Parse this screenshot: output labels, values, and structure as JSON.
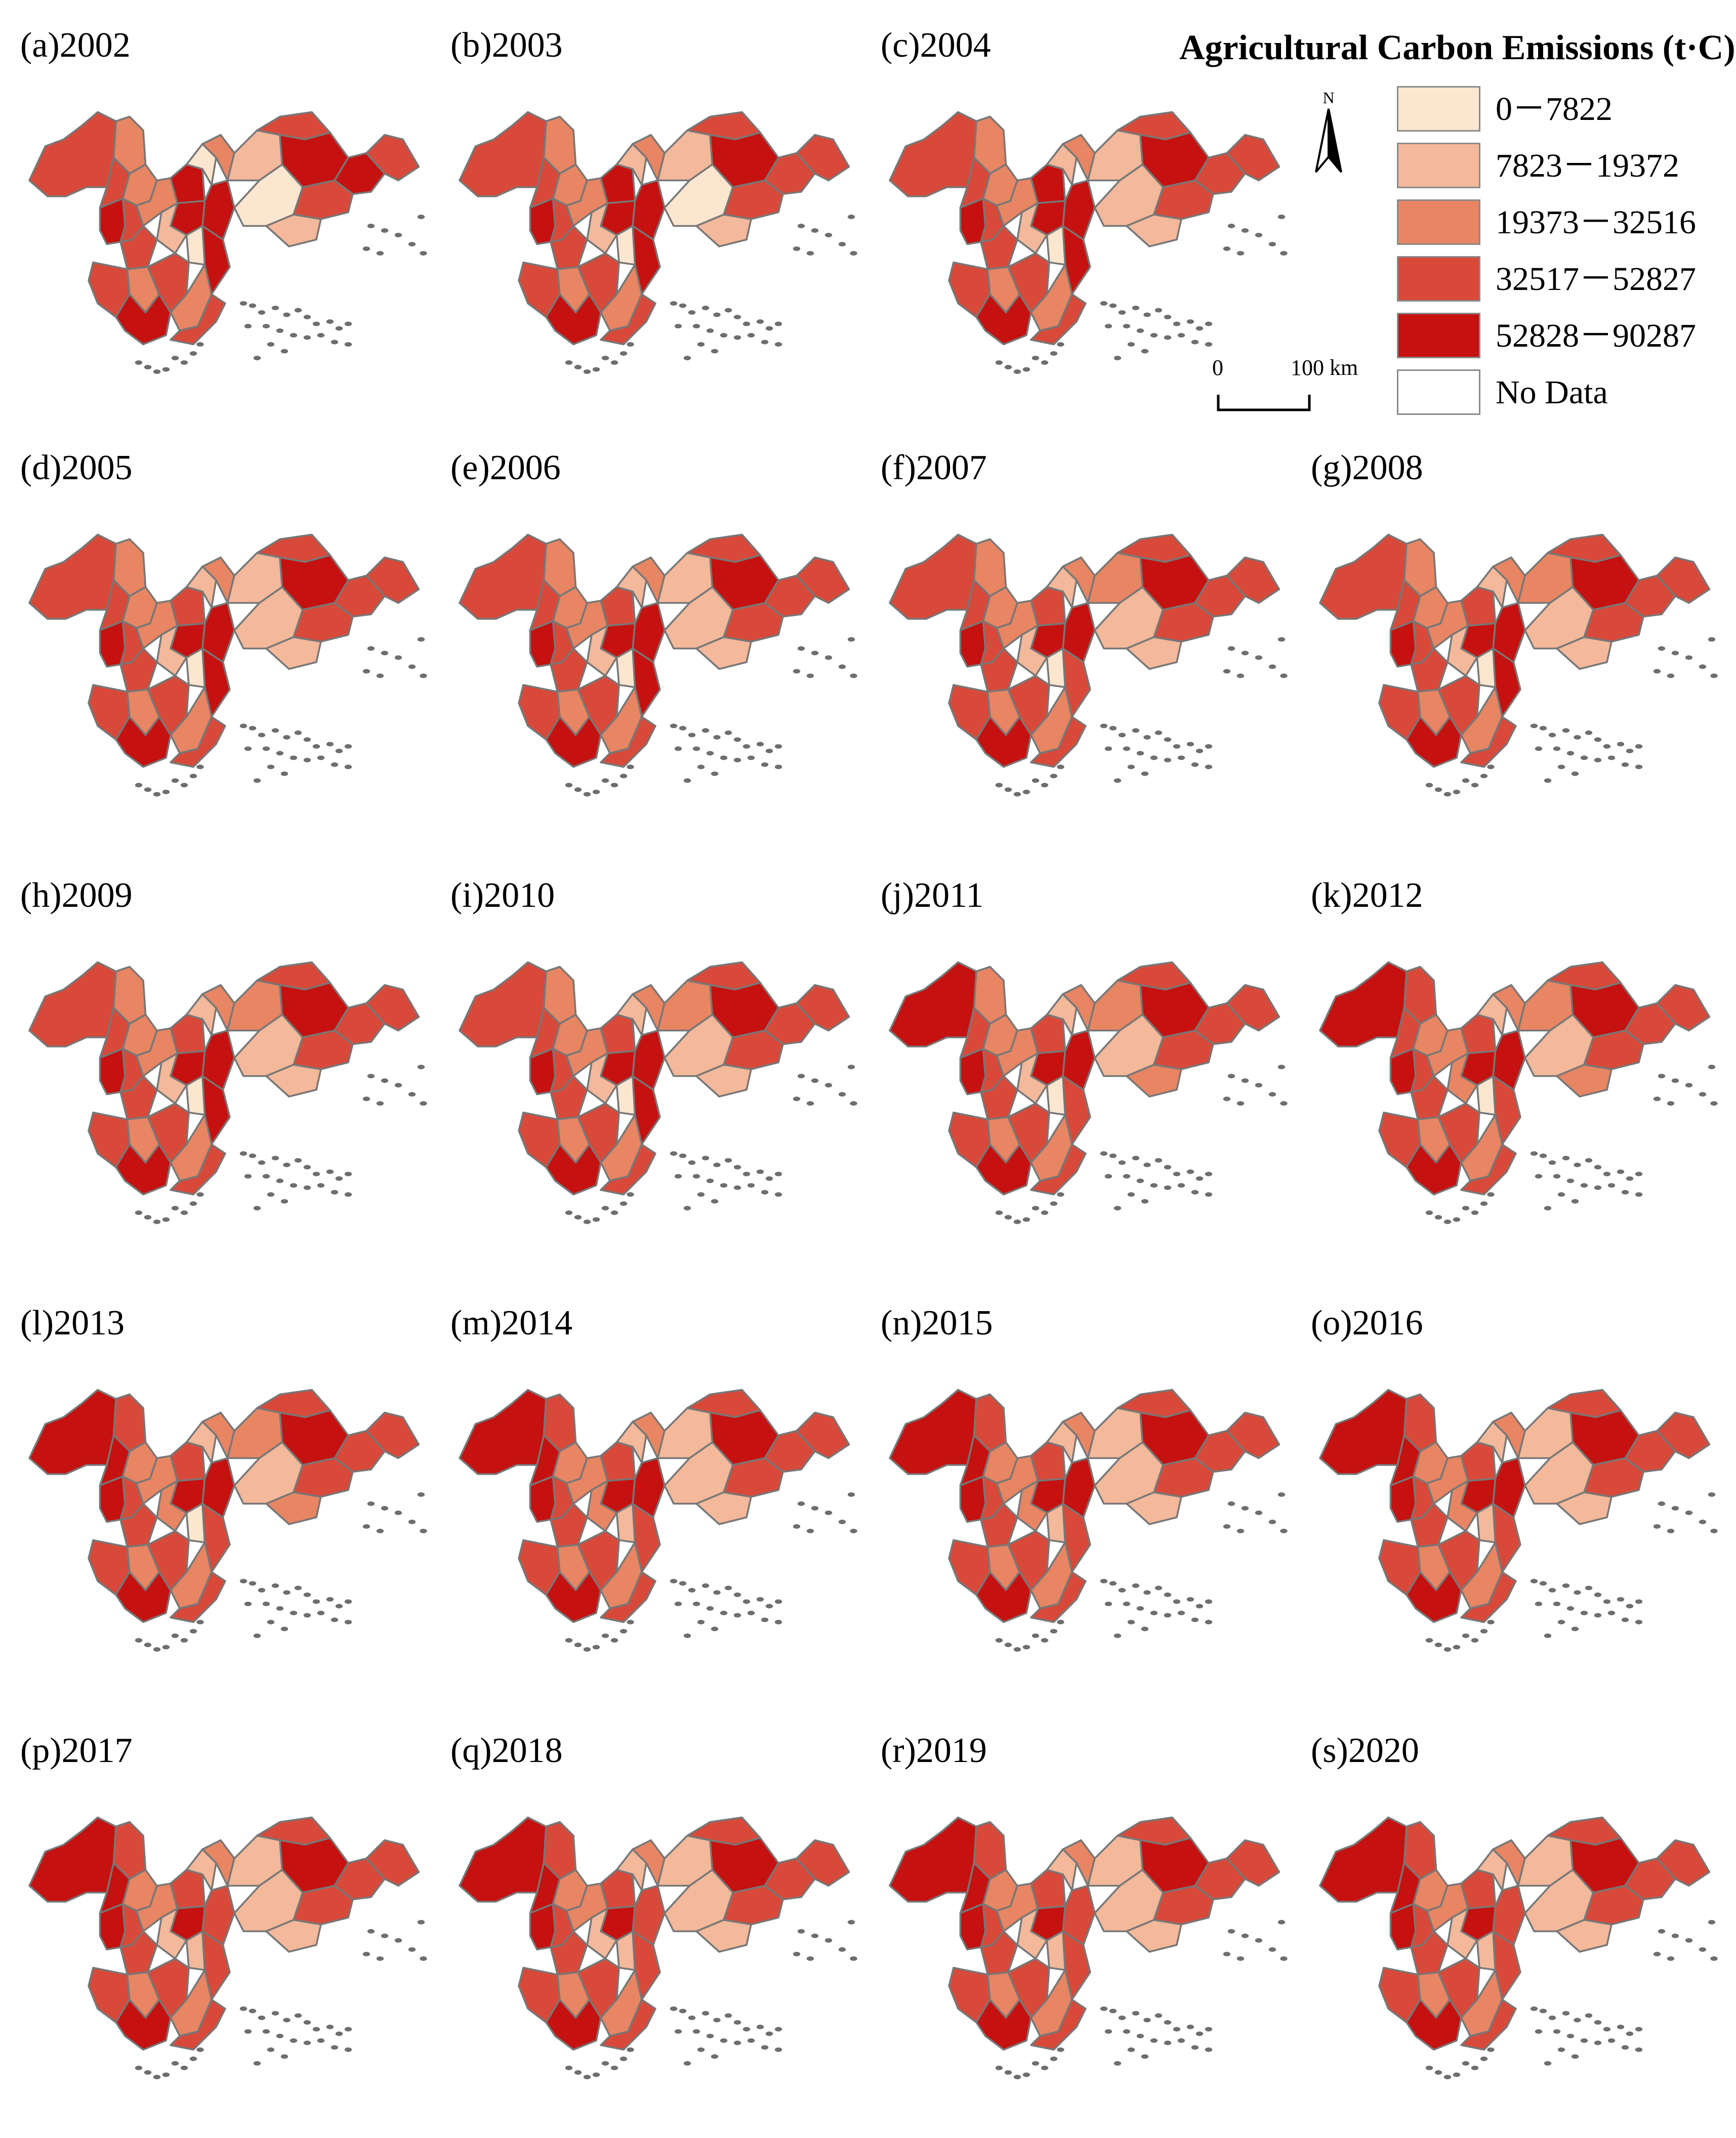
{
  "legend": {
    "title": "Agricultural Carbon Emissions (t·C)",
    "classes": [
      {
        "label": "0－7822",
        "color": "#fde6cf"
      },
      {
        "label": "7823－19372",
        "color": "#f4b89a"
      },
      {
        "label": "19373－32516",
        "color": "#e88563"
      },
      {
        "label": "32517－52827",
        "color": "#d8493a"
      },
      {
        "label": "52828－90287",
        "color": "#c5110f"
      },
      {
        "label": "No Data",
        "color": "#ffffff"
      }
    ],
    "north_label": "N",
    "scale": {
      "start": "0",
      "end": "100 km"
    }
  },
  "panels": [
    {
      "label": "(a)2002",
      "classes": [
        3,
        2,
        3,
        2,
        4,
        3,
        2,
        4,
        0,
        2,
        1,
        3,
        4,
        4,
        3,
        4,
        0,
        3,
        4,
        1,
        3,
        0,
        1,
        4,
        3,
        2,
        3,
        4,
        2,
        3
      ]
    },
    {
      "label": "(b)2003",
      "classes": [
        3,
        2,
        3,
        2,
        4,
        3,
        2,
        4,
        1,
        2,
        1,
        3,
        4,
        3,
        3,
        4,
        0,
        3,
        4,
        1,
        3,
        0,
        1,
        4,
        3,
        2,
        3,
        4,
        2,
        3
      ]
    },
    {
      "label": "(c)2004",
      "classes": [
        3,
        2,
        3,
        2,
        4,
        3,
        2,
        4,
        1,
        2,
        1,
        3,
        4,
        3,
        3,
        4,
        1,
        3,
        4,
        1,
        3,
        0,
        1,
        4,
        3,
        2,
        3,
        4,
        2,
        3
      ]
    },
    {
      "label": "(d)2005",
      "classes": [
        3,
        2,
        3,
        2,
        4,
        3,
        2,
        3,
        1,
        2,
        1,
        3,
        4,
        3,
        3,
        4,
        1,
        3,
        4,
        1,
        3,
        0,
        1,
        4,
        3,
        2,
        3,
        4,
        2,
        3
      ]
    },
    {
      "label": "(e)2006",
      "classes": [
        3,
        2,
        3,
        2,
        4,
        3,
        2,
        3,
        1,
        2,
        1,
        3,
        4,
        3,
        3,
        4,
        1,
        3,
        4,
        1,
        3,
        0,
        1,
        4,
        3,
        2,
        3,
        4,
        2,
        3
      ]
    },
    {
      "label": "(f)2007",
      "classes": [
        3,
        2,
        3,
        2,
        4,
        3,
        2,
        3,
        1,
        2,
        2,
        3,
        4,
        3,
        3,
        4,
        1,
        3,
        4,
        1,
        3,
        0,
        1,
        3,
        3,
        2,
        3,
        4,
        2,
        3
      ]
    },
    {
      "label": "(g)2008",
      "classes": [
        3,
        2,
        3,
        2,
        4,
        3,
        2,
        3,
        1,
        2,
        2,
        3,
        4,
        3,
        3,
        4,
        1,
        3,
        4,
        1,
        3,
        0,
        1,
        4,
        3,
        2,
        3,
        4,
        2,
        3
      ]
    },
    {
      "label": "(h)2009",
      "classes": [
        3,
        2,
        3,
        2,
        4,
        3,
        2,
        3,
        1,
        2,
        2,
        3,
        4,
        3,
        3,
        4,
        1,
        3,
        4,
        1,
        3,
        0,
        1,
        4,
        3,
        2,
        3,
        4,
        2,
        3
      ]
    },
    {
      "label": "(i)2010",
      "classes": [
        3,
        2,
        3,
        2,
        4,
        3,
        2,
        3,
        1,
        2,
        2,
        3,
        4,
        3,
        3,
        4,
        1,
        3,
        4,
        1,
        3,
        0,
        1,
        4,
        3,
        2,
        3,
        4,
        2,
        3
      ]
    },
    {
      "label": "(j)2011",
      "classes": [
        4,
        2,
        3,
        2,
        4,
        3,
        2,
        3,
        1,
        2,
        2,
        3,
        4,
        3,
        3,
        4,
        1,
        3,
        4,
        1,
        3,
        0,
        2,
        3,
        3,
        2,
        3,
        4,
        2,
        3
      ]
    },
    {
      "label": "(k)2012",
      "classes": [
        4,
        3,
        3,
        2,
        4,
        3,
        2,
        3,
        1,
        2,
        2,
        3,
        4,
        3,
        3,
        4,
        1,
        3,
        4,
        2,
        3,
        0,
        2,
        3,
        3,
        2,
        3,
        4,
        2,
        3
      ]
    },
    {
      "label": "(l)2013",
      "classes": [
        4,
        3,
        4,
        2,
        4,
        3,
        2,
        3,
        1,
        2,
        2,
        3,
        4,
        3,
        3,
        4,
        1,
        3,
        4,
        2,
        3,
        0,
        2,
        3,
        3,
        2,
        3,
        4,
        2,
        3
      ]
    },
    {
      "label": "(m)2014",
      "classes": [
        4,
        3,
        4,
        2,
        4,
        3,
        2,
        3,
        1,
        2,
        1,
        3,
        4,
        3,
        3,
        4,
        1,
        3,
        4,
        2,
        3,
        1,
        1,
        3,
        3,
        2,
        3,
        4,
        2,
        3
      ]
    },
    {
      "label": "(n)2015",
      "classes": [
        4,
        3,
        4,
        2,
        4,
        3,
        2,
        3,
        1,
        2,
        1,
        3,
        4,
        3,
        3,
        4,
        1,
        3,
        4,
        2,
        3,
        1,
        1,
        3,
        3,
        2,
        3,
        4,
        2,
        3
      ]
    },
    {
      "label": "(o)2016",
      "classes": [
        4,
        3,
        4,
        2,
        4,
        3,
        2,
        3,
        1,
        2,
        1,
        3,
        4,
        3,
        3,
        4,
        1,
        3,
        4,
        2,
        3,
        1,
        1,
        3,
        3,
        2,
        3,
        4,
        2,
        3
      ]
    },
    {
      "label": "(p)2017",
      "classes": [
        4,
        3,
        4,
        2,
        4,
        3,
        2,
        3,
        1,
        2,
        1,
        3,
        4,
        3,
        3,
        3,
        1,
        3,
        4,
        1,
        3,
        1,
        1,
        3,
        3,
        2,
        3,
        4,
        2,
        3
      ]
    },
    {
      "label": "(q)2018",
      "classes": [
        4,
        3,
        4,
        2,
        4,
        3,
        2,
        3,
        1,
        2,
        1,
        3,
        4,
        3,
        3,
        3,
        1,
        3,
        4,
        1,
        3,
        1,
        1,
        3,
        3,
        2,
        3,
        4,
        2,
        3
      ]
    },
    {
      "label": "(r)2019",
      "classes": [
        4,
        3,
        4,
        2,
        4,
        3,
        2,
        3,
        1,
        2,
        1,
        3,
        4,
        3,
        3,
        3,
        1,
        3,
        4,
        1,
        3,
        1,
        1,
        3,
        3,
        2,
        3,
        4,
        2,
        3
      ]
    },
    {
      "label": "(s)2020",
      "classes": [
        4,
        3,
        4,
        2,
        4,
        3,
        2,
        3,
        1,
        2,
        1,
        3,
        4,
        3,
        3,
        3,
        1,
        3,
        4,
        1,
        3,
        1,
        1,
        3,
        3,
        2,
        3,
        4,
        2,
        3
      ]
    }
  ]
}
